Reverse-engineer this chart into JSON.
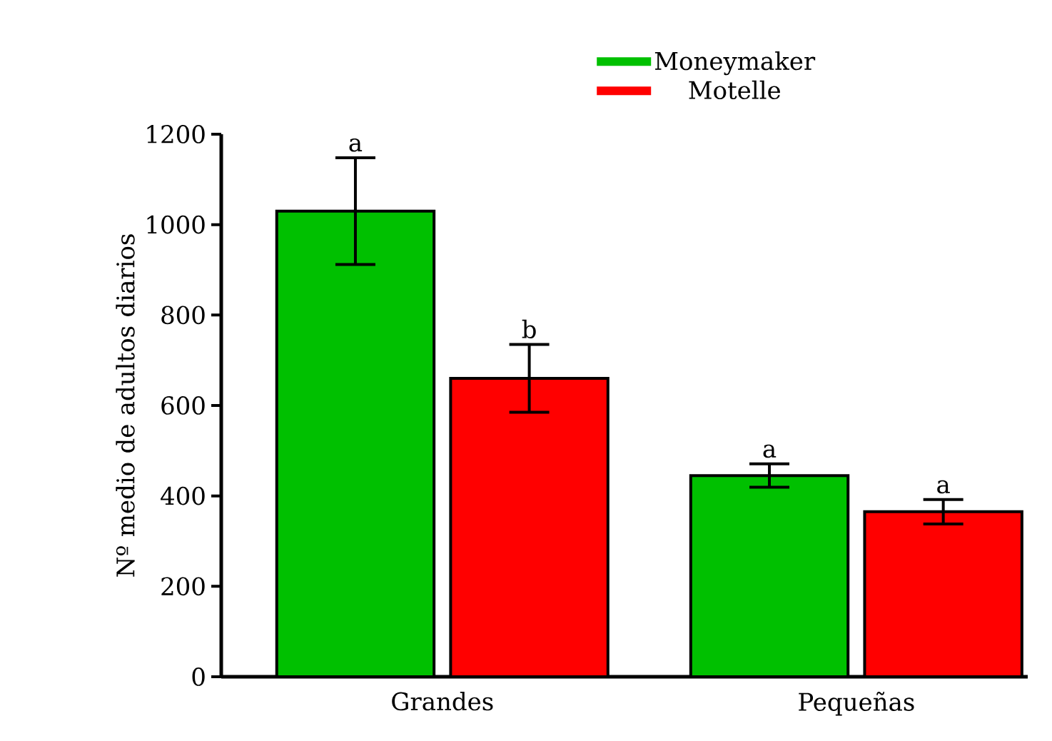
{
  "chart_data": {
    "type": "bar",
    "ylabel": "Nº medio de adultos diarios",
    "categories": [
      "Grandes",
      "Pequeñas"
    ],
    "series": [
      {
        "name": "Moneymaker",
        "color": "#00c000",
        "values": [
          1030,
          445
        ],
        "errors": [
          118,
          26
        ],
        "value_labels": [
          "a",
          "a"
        ]
      },
      {
        "name": "Motelle",
        "color": "#ff0000",
        "values": [
          660,
          365
        ],
        "errors": [
          75,
          27
        ],
        "value_labels": [
          "b",
          "a"
        ]
      }
    ],
    "ylim": [
      0,
      1200
    ],
    "yticks": [
      0,
      200,
      400,
      600,
      800,
      1000,
      1200
    ],
    "grid": false,
    "legend": "top"
  }
}
